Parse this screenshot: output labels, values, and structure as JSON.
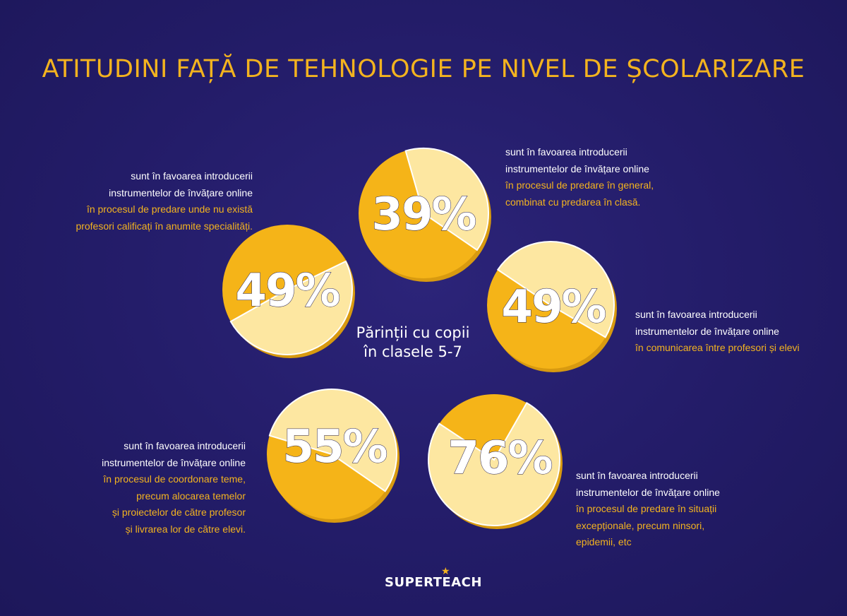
{
  "title": "ATITUDINI FAȚĂ DE TEHNOLOGIE PE NIVEL DE ȘCOLARIZARE",
  "center_label": [
    "Părinții cu copii",
    "în clasele 5-7"
  ],
  "colors": {
    "background": "#261f6e",
    "accent": "#f3b31f",
    "pie_light": "#fde7a1",
    "pie_dark": "#f5b418"
  },
  "chart_data": {
    "type": "pie",
    "items": [
      {
        "value": 39,
        "label": "39%",
        "text_white": [
          "sunt în favoarea introducerii",
          "instrumentelor de învățare online"
        ],
        "text_yellow": [
          "în procesul de predare în general,",
          "combinat cu predarea în clasă."
        ]
      },
      {
        "value": 49,
        "label": "49%",
        "text_white": [
          "sunt în favoarea introducerii",
          "instrumentelor de învățare online"
        ],
        "text_yellow": [
          "în procesul de predare unde nu există",
          "profesori calificați în anumite specialități."
        ]
      },
      {
        "value": 49,
        "label": "49%",
        "text_white": [
          "sunt în favoarea introducerii",
          "instrumentelor de învățare online"
        ],
        "text_yellow": [
          "în comunicarea între profesori și elevi"
        ]
      },
      {
        "value": 55,
        "label": "55%",
        "text_white": [
          "sunt în favoarea introducerii",
          "instrumentelor de învățare online"
        ],
        "text_yellow": [
          "în procesul de coordonare teme,",
          "precum alocarea temelor",
          "și proiectelor de către profesor",
          "și livrarea lor de către elevi."
        ]
      },
      {
        "value": 76,
        "label": "76%",
        "text_white": [
          "sunt în favoarea introducerii",
          "instrumentelor de învățare online"
        ],
        "text_yellow": [
          "în procesul de predare în situații",
          "excepționale, precum ninsori,",
          "epidemii, etc"
        ]
      }
    ]
  },
  "logo": "SUPERTEACH"
}
